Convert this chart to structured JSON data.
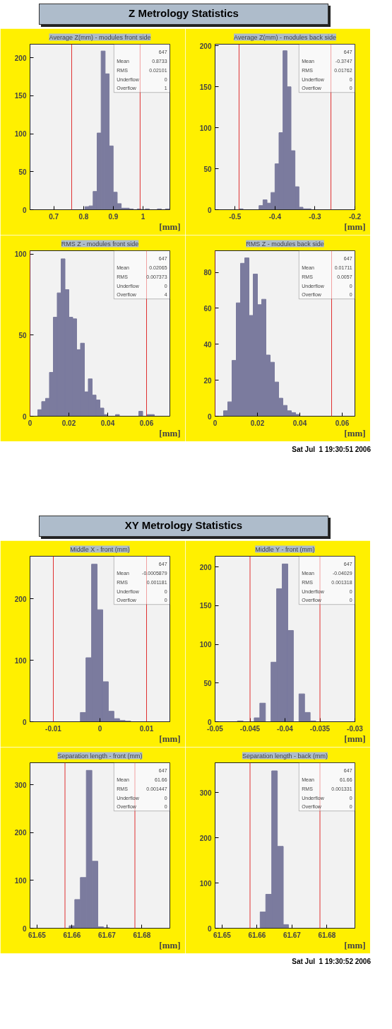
{
  "chart_data": [
    {
      "type": "histogram",
      "title": "Average Z(mm) - modules front side",
      "xlabel": "[mm]",
      "color": "#7b7b9e",
      "bins": [
        0.805,
        0.8185,
        0.832,
        0.8455,
        0.859,
        0.8725,
        0.886,
        0.8995,
        0.913,
        0.9265,
        0.94,
        0.9535,
        0.967,
        0.9805,
        0.994,
        1.0075,
        1.021,
        1.0345,
        1.048,
        1.0615,
        1.075,
        1.0885
      ],
      "values": [
        4,
        5,
        24,
        101,
        209,
        179,
        84,
        23,
        8,
        2,
        2,
        1,
        0,
        1,
        0,
        1,
        0,
        0,
        1,
        0,
        1
      ],
      "xlim": [
        0.62,
        1.09
      ],
      "ylim": [
        0,
        218
      ],
      "xticks": [
        0.7,
        0.8,
        0.9,
        1
      ],
      "yticks": [
        0,
        50,
        100,
        150,
        200
      ],
      "ref_lines": [
        {
          "axis": "x",
          "value": 0.76,
          "color": "#e03030"
        },
        {
          "axis": "x",
          "value": 0.99,
          "color": "#e03030"
        }
      ],
      "annotations": [
        "Z Metrology Statistics",
        "647",
        "Mean 0.8733",
        "RMS 0.02101",
        "Underflow 0",
        "Overflow 1"
      ]
    },
    {
      "type": "histogram",
      "title": "Average Z(mm) - modules back side",
      "xlabel": "[mm]",
      "color": "#7b7b9e",
      "bins": [
        -0.49,
        -0.48,
        -0.47,
        -0.46,
        -0.45,
        -0.44,
        -0.43,
        -0.42,
        -0.41,
        -0.4,
        -0.39,
        -0.38,
        -0.37,
        -0.36,
        -0.35,
        -0.34,
        -0.33,
        -0.32,
        -0.31
      ],
      "values": [
        1,
        0,
        0,
        0,
        0,
        5,
        12,
        8,
        21,
        56,
        94,
        194,
        150,
        72,
        28,
        3,
        1,
        1
      ],
      "xlim": [
        -0.55,
        -0.2
      ],
      "ylim": [
        0,
        202
      ],
      "xticks": [
        -0.5,
        -0.4,
        -0.3,
        -0.2
      ],
      "yticks": [
        0,
        50,
        100,
        150,
        200
      ],
      "ref_lines": [
        {
          "axis": "x",
          "value": -0.49,
          "color": "#e03030"
        },
        {
          "axis": "x",
          "value": -0.26,
          "color": "#e03030"
        }
      ],
      "annotations": [
        "647",
        "Mean -0.3747",
        "RMS 0.01762",
        "Underflow 0",
        "Overflow 0"
      ]
    },
    {
      "type": "histogram",
      "title": "RMS Z - modules front side",
      "xlabel": "[mm]",
      "color": "#7b7b9e",
      "bins": [
        0,
        0.002,
        0.004,
        0.006,
        0.008,
        0.01,
        0.012,
        0.014,
        0.016,
        0.018,
        0.02,
        0.022,
        0.024,
        0.026,
        0.028,
        0.03,
        0.032,
        0.034,
        0.036,
        0.038,
        0.04,
        0.042,
        0.044,
        0.046,
        0.048,
        0.05,
        0.052,
        0.054,
        0.056,
        0.058,
        0.06,
        0.062,
        0.064,
        0.066,
        0.068,
        0.07,
        0.072
      ],
      "values": [
        0,
        0,
        4,
        9,
        11,
        27,
        61,
        76,
        97,
        78,
        61,
        60,
        41,
        45,
        15,
        23,
        13,
        10,
        5,
        1,
        0,
        0,
        1,
        0,
        0,
        0,
        0,
        0,
        3,
        0,
        1,
        1,
        0,
        0,
        0,
        0
      ],
      "xlim": [
        0,
        0.072
      ],
      "ylim": [
        0,
        102
      ],
      "xticks": [
        0,
        0.02,
        0.04,
        0.06
      ],
      "yticks": [
        0,
        50,
        100
      ],
      "ref_lines": [
        {
          "axis": "x",
          "value": 0,
          "color": "#e03030"
        },
        {
          "axis": "x",
          "value": 0.06,
          "color": "#e03030"
        }
      ],
      "annotations": [
        "647",
        "Mean 0.02065",
        "RMS 0.007373",
        "Underflow 0",
        "Overflow 4"
      ]
    },
    {
      "type": "histogram",
      "title": "RMS Z - modules back side",
      "xlabel": "[mm]",
      "color": "#7b7b9e",
      "bins": [
        0,
        0.002,
        0.004,
        0.006,
        0.008,
        0.01,
        0.012,
        0.014,
        0.016,
        0.018,
        0.02,
        0.022,
        0.024,
        0.026,
        0.028,
        0.03,
        0.032,
        0.034,
        0.036,
        0.038,
        0.04,
        0.042,
        0.044,
        0.046,
        0.048,
        0.05,
        0.052,
        0.054,
        0.056,
        0.058,
        0.06,
        0.062,
        0.064,
        0.066
      ],
      "values": [
        0,
        0,
        3,
        8,
        31,
        63,
        85,
        88,
        56,
        79,
        62,
        65,
        34,
        30,
        19,
        10,
        6,
        3,
        2,
        1,
        0,
        0,
        0,
        0,
        0,
        0,
        0,
        0,
        0,
        0,
        0,
        0,
        0
      ],
      "xlim": [
        0,
        0.066
      ],
      "ylim": [
        0,
        92
      ],
      "xticks": [
        0,
        0.02,
        0.04,
        0.06
      ],
      "yticks": [
        0,
        20,
        40,
        60,
        80
      ],
      "ref_lines": [
        {
          "axis": "x",
          "value": 0,
          "color": "#e03030"
        },
        {
          "axis": "x",
          "value": 0.055,
          "color": "#e03030"
        }
      ],
      "annotations": [
        "647",
        "Mean 0.01711",
        "RMS 0.0057",
        "Underflow 0",
        "Overflow 0",
        "Sat Jul  1 19:30:51 2006"
      ]
    },
    {
      "type": "histogram",
      "title": "Middle X - front (mm)",
      "xlabel": "[mm]",
      "color": "#7b7b9e",
      "bins": [
        -0.0042,
        -0.003,
        -0.0018,
        -0.0006,
        0.0006,
        0.0018,
        0.003,
        0.0042,
        0.0054,
        0.0066
      ],
      "values": [
        15,
        104,
        256,
        182,
        65,
        17,
        5,
        2,
        1
      ],
      "xlim": [
        -0.015,
        0.015
      ],
      "ylim": [
        0,
        269
      ],
      "xticks": [
        -0.01,
        0,
        0.01
      ],
      "yticks": [
        0,
        100,
        200
      ],
      "ref_lines": [
        {
          "axis": "x",
          "value": -0.01,
          "color": "#e03030"
        },
        {
          "axis": "x",
          "value": 0.01,
          "color": "#e03030"
        }
      ],
      "annotations": [
        "XY Metrology Statistics",
        "647",
        "Mean -0.0005879",
        "RMS 0.001181",
        "Underflow 0",
        "Overflow 0"
      ]
    },
    {
      "type": "histogram",
      "title": "Middle Y - front (mm)",
      "xlabel": "[mm]",
      "color": "#7b7b9e",
      "bins": [
        -0.0468,
        -0.046,
        -0.0452,
        -0.0444,
        -0.0436,
        -0.0428,
        -0.042,
        -0.0412,
        -0.0404,
        -0.0396,
        -0.0388,
        -0.038,
        -0.0372,
        -0.0364,
        -0.0356
      ],
      "values": [
        1,
        0,
        0,
        5,
        24,
        0,
        77,
        172,
        204,
        118,
        0,
        36,
        12,
        1
      ],
      "xlim": [
        -0.05,
        -0.03
      ],
      "ylim": [
        0,
        214
      ],
      "xticks": [
        -0.05,
        -0.045,
        -0.04,
        -0.035,
        -0.03
      ],
      "yticks": [
        0,
        50,
        100,
        150,
        200
      ],
      "ref_lines": [
        {
          "axis": "x",
          "value": -0.045,
          "color": "#e03030"
        },
        {
          "axis": "x",
          "value": -0.035,
          "color": "#e03030"
        }
      ],
      "annotations": [
        "647",
        "Mean -0.04029",
        "RMS 0.001318",
        "Underflow 0",
        "Overflow 0"
      ]
    },
    {
      "type": "histogram",
      "title": "Separation length - front (mm)",
      "xlabel": "[mm]",
      "color": "#7b7b9e",
      "bins": [
        61.6592,
        61.6608,
        61.6624,
        61.6641,
        61.6657,
        61.6674,
        61.669,
        61.6707
      ],
      "values": [
        5,
        60,
        106,
        330,
        140,
        3,
        1
      ],
      "xlim": [
        61.648,
        61.688
      ],
      "ylim": [
        0,
        346
      ],
      "xticks": [
        61.65,
        61.66,
        61.67,
        61.68
      ],
      "yticks": [
        0,
        100,
        200,
        300
      ],
      "ref_lines": [
        {
          "axis": "x",
          "value": 61.658,
          "color": "#e03030"
        },
        {
          "axis": "x",
          "value": 61.678,
          "color": "#e03030"
        }
      ],
      "annotations": [
        "647",
        "Mean 61.66",
        "RMS 0.001447",
        "Underflow 0",
        "Overflow 0"
      ]
    },
    {
      "type": "histogram",
      "title": "Separation length - back (mm)",
      "xlabel": "[mm]",
      "color": "#7b7b9e",
      "bins": [
        61.6609,
        61.6625,
        61.6642,
        61.6658,
        61.6675,
        61.669
      ],
      "values": [
        36,
        75,
        348,
        181,
        8
      ],
      "xlim": [
        61.648,
        61.688
      ],
      "ylim": [
        0,
        366
      ],
      "xticks": [
        61.65,
        61.66,
        61.67,
        61.68
      ],
      "yticks": [
        0,
        100,
        200,
        300
      ],
      "ref_lines": [
        {
          "axis": "x",
          "value": 61.658,
          "color": "#e03030"
        },
        {
          "axis": "x",
          "value": 61.678,
          "color": "#e03030"
        }
      ],
      "annotations": [
        "647",
        "Mean 61.66",
        "RMS 0.001331",
        "Underflow 0",
        "Overflow 0",
        "Sat Jul  1 19:30:52 2006"
      ]
    }
  ]
}
